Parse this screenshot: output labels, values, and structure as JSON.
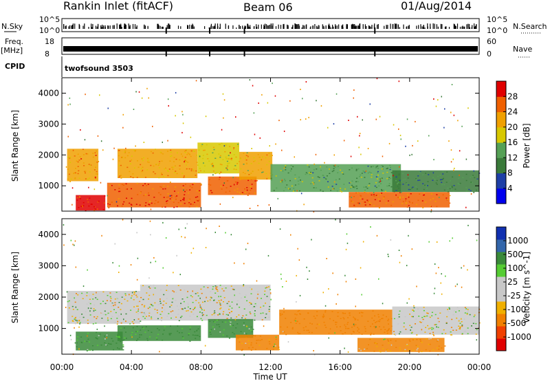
{
  "header": {
    "station": "Rankin Inlet (fitACF)",
    "beam": "Beam 06",
    "date": "01/Aug/2014"
  },
  "strip_labels": {
    "nsky": "N.Sky",
    "freq_top": "Freq.",
    "freq_unit": "[MHz]",
    "cpid": "CPID",
    "nsearch": "N.Search",
    "nave": "Nave",
    "cpid_value": "twofsound 3503"
  },
  "strip_ticks": {
    "noise_left_top": "10^5",
    "noise_left_bottom": "10^0",
    "noise_right_top": "10^5",
    "noise_right_bottom": "10^0",
    "freq_top": "18",
    "freq_bottom": "8",
    "nave_top": "60",
    "nave_bottom": "0"
  },
  "colors": {
    "power": [
      "#0000ee",
      "#1e3fa6",
      "#3a7a3a",
      "#55a055",
      "#d8c800",
      "#f0a000",
      "#f06000",
      "#e00000"
    ],
    "velocity": [
      "#e00000",
      "#f04000",
      "#f08000",
      "#f0b000",
      "#c8c8c8",
      "#c8c8c8",
      "#55cc33",
      "#3a8a3a",
      "#3366aa",
      "#1030b0"
    ]
  },
  "chart_data": [
    {
      "type": "heatmap",
      "title": "Power",
      "xlabel": "Time UT",
      "ylabel": "Slant Range [km]",
      "xlim_hours": [
        0,
        24
      ],
      "ylim_km": [
        180,
        4500
      ],
      "x_ticks": [
        "00:00",
        "04:00",
        "08:00",
        "12:00",
        "16:00",
        "20:00",
        "00:00"
      ],
      "y_ticks": [
        1000,
        2000,
        3000,
        4000
      ],
      "colorbar_label": "Power [dB]",
      "colorbar_ticks": [
        4,
        8,
        12,
        16,
        20,
        24,
        28
      ],
      "colorbar_range": [
        0,
        30
      ],
      "bands": [
        {
          "t": [
            0.3,
            2.1
          ],
          "r": [
            1150,
            2200
          ],
          "level": 22
        },
        {
          "t": [
            0.8,
            2.5
          ],
          "r": [
            200,
            700
          ],
          "level": 27
        },
        {
          "t": [
            2.6,
            8.0
          ],
          "r": [
            300,
            1100
          ],
          "level": 26
        },
        {
          "t": [
            3.2,
            7.8
          ],
          "r": [
            1250,
            2200
          ],
          "level": 21
        },
        {
          "t": [
            7.8,
            10.2
          ],
          "r": [
            1400,
            2400
          ],
          "level": 18
        },
        {
          "t": [
            8.4,
            11.2
          ],
          "r": [
            700,
            1300
          ],
          "level": 25
        },
        {
          "t": [
            10.2,
            12.1
          ],
          "r": [
            1200,
            2100
          ],
          "level": 19
        },
        {
          "t": [
            12.0,
            19.5
          ],
          "r": [
            800,
            1700
          ],
          "level": 12
        },
        {
          "t": [
            16.5,
            22.3
          ],
          "r": [
            300,
            800
          ],
          "level": 24
        },
        {
          "t": [
            19.0,
            24.0
          ],
          "r": [
            800,
            1500
          ],
          "level": 10
        }
      ]
    },
    {
      "type": "heatmap",
      "title": "Velocity",
      "xlabel": "Time UT",
      "ylabel": "Slant Range [km]",
      "xlim_hours": [
        0,
        24
      ],
      "ylim_km": [
        180,
        4500
      ],
      "x_ticks": [
        "00:00",
        "04:00",
        "08:00",
        "12:00",
        "16:00",
        "20:00",
        "00:00"
      ],
      "y_ticks": [
        1000,
        2000,
        3000,
        4000
      ],
      "colorbar_label": "Velocity [m s^-1]",
      "colorbar_ticks": [
        "1000",
        "500",
        "100",
        "25",
        "-25",
        "-100",
        "-500",
        "-1000"
      ],
      "bands": [
        {
          "t": [
            0.3,
            4.5
          ],
          "r": [
            1150,
            2200
          ],
          "velocity": 0
        },
        {
          "t": [
            0.8,
            3.5
          ],
          "r": [
            300,
            900
          ],
          "velocity": 150
        },
        {
          "t": [
            3.2,
            8.0
          ],
          "r": [
            600,
            1100
          ],
          "velocity": 180
        },
        {
          "t": [
            4.5,
            12.0
          ],
          "r": [
            1250,
            2400
          ],
          "velocity": 0
        },
        {
          "t": [
            8.4,
            11.0
          ],
          "r": [
            700,
            1300
          ],
          "velocity": 120
        },
        {
          "t": [
            10.0,
            12.5
          ],
          "r": [
            300,
            800
          ],
          "velocity": -150
        },
        {
          "t": [
            12.5,
            19.0
          ],
          "r": [
            800,
            1600
          ],
          "velocity": -300
        },
        {
          "t": [
            17.0,
            22.0
          ],
          "r": [
            250,
            700
          ],
          "velocity": -120
        },
        {
          "t": [
            19.0,
            24.0
          ],
          "r": [
            800,
            1700
          ],
          "velocity": 0
        }
      ]
    }
  ]
}
